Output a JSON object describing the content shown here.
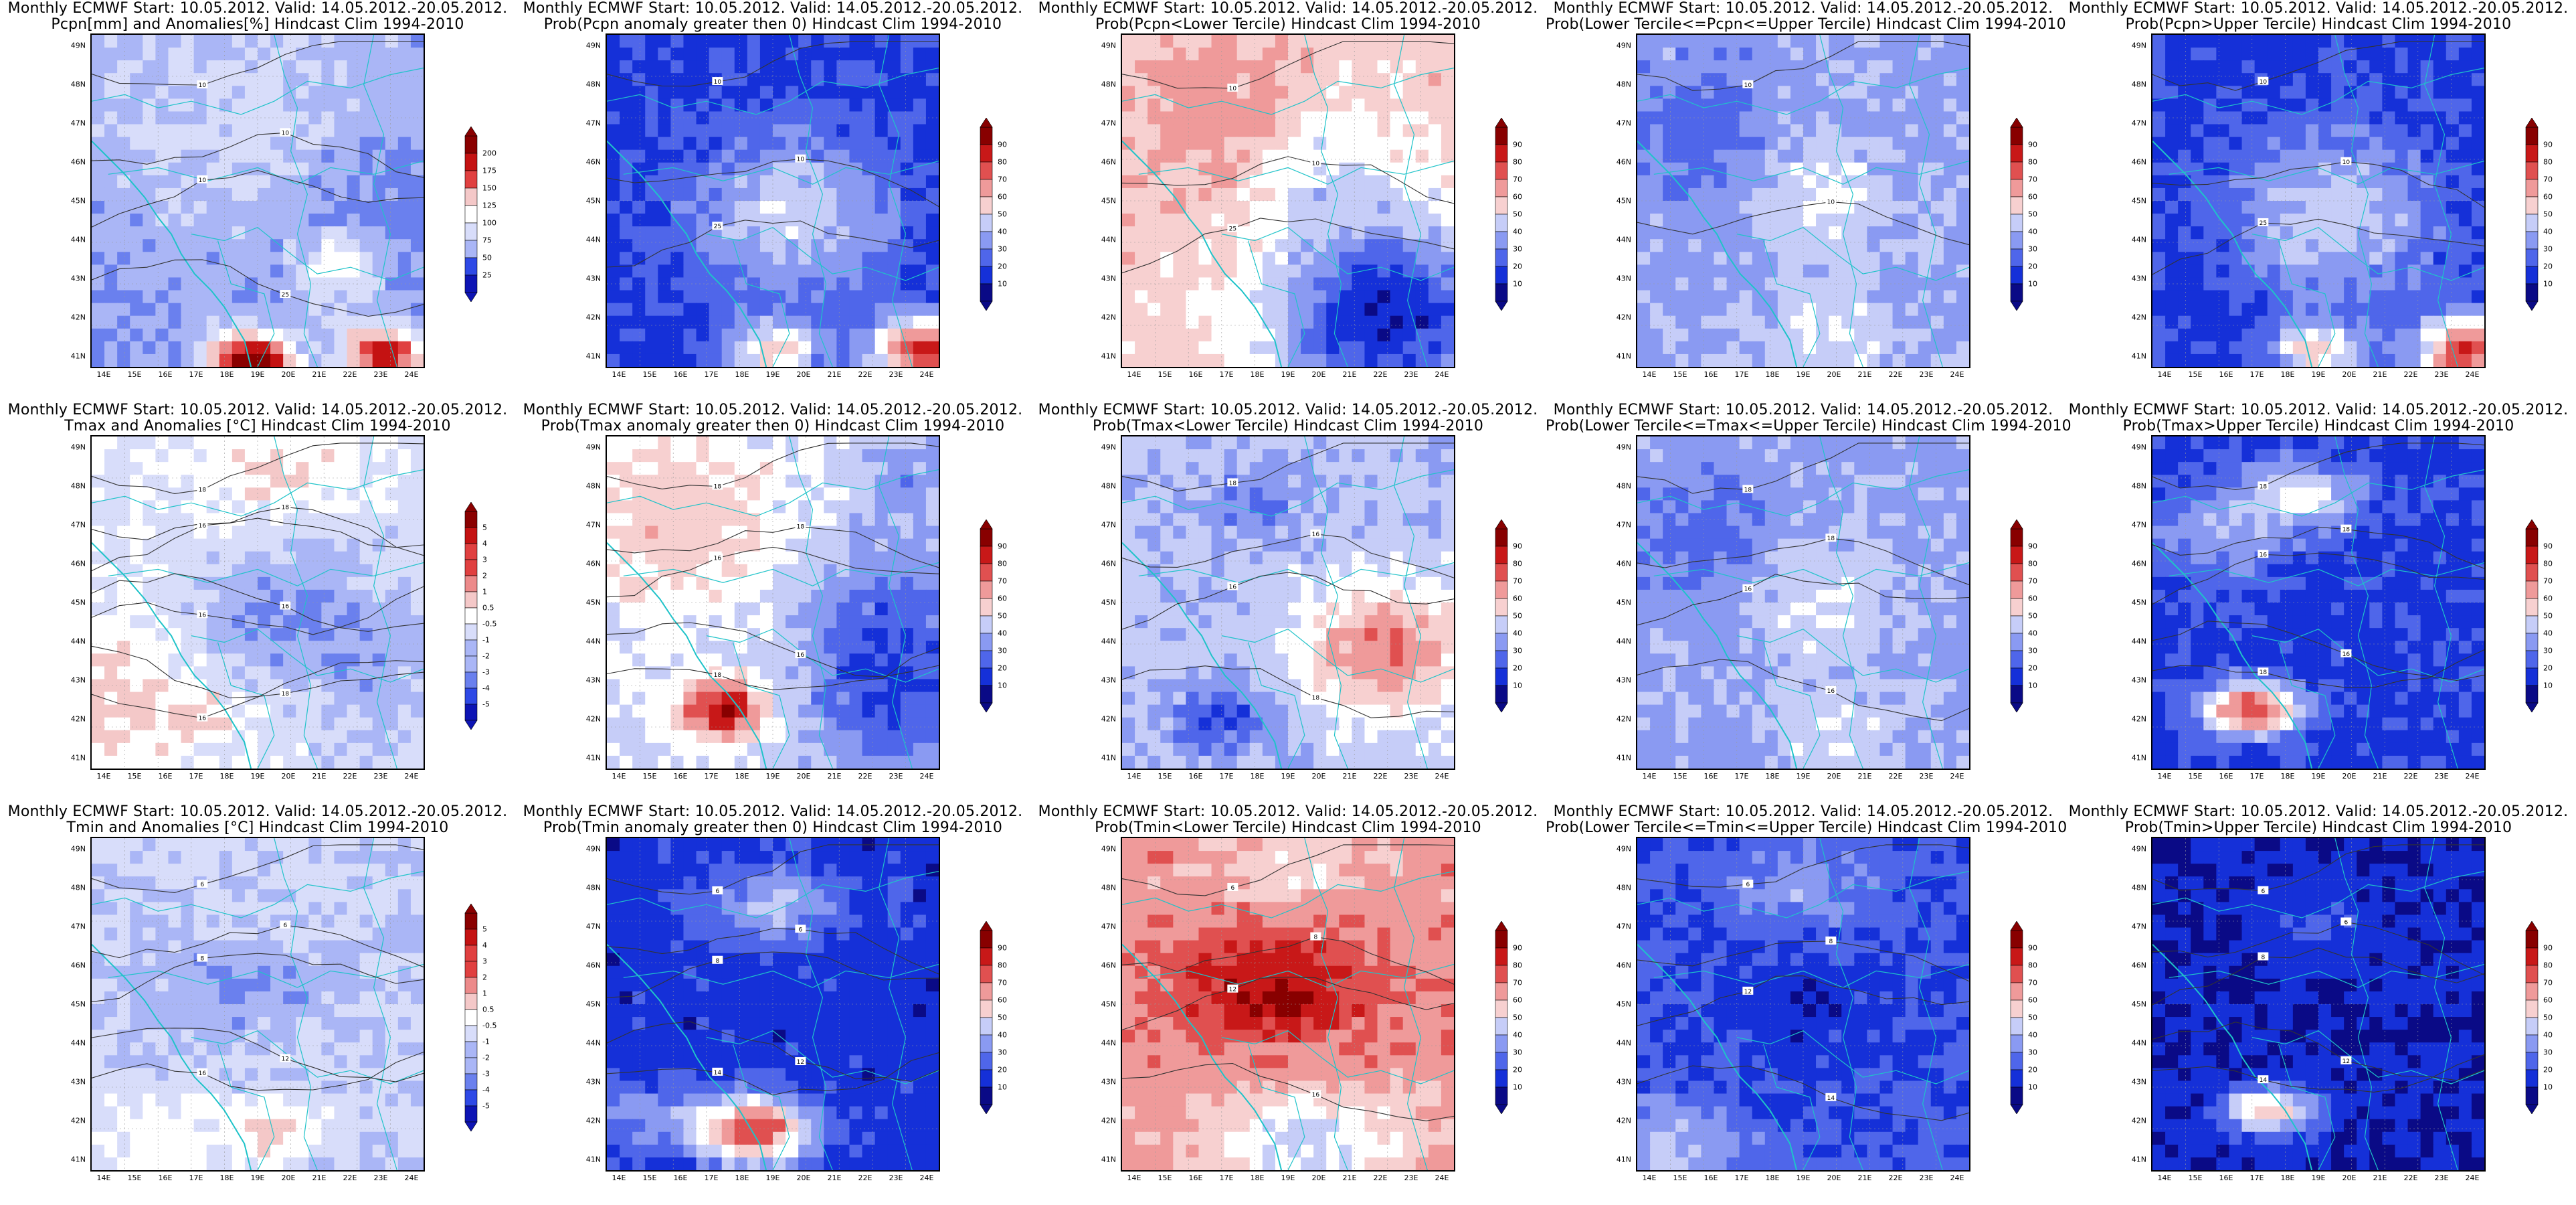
{
  "colors": {
    "precip_scale": [
      "#0d14b4",
      "#2e49e6",
      "#6a80ee",
      "#aab6f6",
      "#d8ddfa",
      "#ffffff",
      "#f4c8c8",
      "#ec8a8a",
      "#e04040",
      "#c41212",
      "#8a0000"
    ],
    "prob_scale": [
      "#0a0a86",
      "#1530d8",
      "#4f66ea",
      "#8a9af2",
      "#c6cdf8",
      "#ffffff",
      "#f7d0d0",
      "#ef9a9a",
      "#e05050",
      "#c81818",
      "#880000"
    ],
    "coast_line": "#1fc3c9",
    "contour_line": "#333333"
  },
  "x_ticks": [
    "14E",
    "15E",
    "16E",
    "17E",
    "18E",
    "19E",
    "20E",
    "21E",
    "22E",
    "23E",
    "24E"
  ],
  "y_ticks": [
    "41N",
    "42N",
    "43N",
    "44N",
    "45N",
    "46N",
    "47N",
    "48N",
    "49N"
  ],
  "panels": [
    {
      "id": "pcpn-anom",
      "line1": "Monthly ECMWF Start: 10.05.2012. Valid: 14.05.2012.-20.05.2012.",
      "line2": "Pcpn[mm] and Anomalies[%] Hindcast Clim 1994-2010",
      "cbar_labels": [
        "200",
        "175",
        "150",
        "125",
        "100",
        "75",
        "50",
        "25"
      ],
      "pattern": "pcpn",
      "contours": [
        "10",
        "10",
        "10",
        "25"
      ]
    },
    {
      "id": "pcpn-p0",
      "line1": "Monthly ECMWF Start: 10.05.2012. Valid: 14.05.2012.-20.05.2012.",
      "line2": "Prob(Pcpn anomaly greater then 0) Hindcast Clim 1994-2010",
      "cbar_labels": [
        "90",
        "80",
        "70",
        "60",
        "50",
        "40",
        "30",
        "20",
        "10"
      ],
      "pattern": "pcpn-p",
      "contours": [
        "10",
        "10",
        "25"
      ]
    },
    {
      "id": "pcpn-lower",
      "line1": "Monthly ECMWF Start: 10.05.2012. Valid: 14.05.2012.-20.05.2012.",
      "line2": "Prob(Pcpn<Lower Tercile) Hindcast Clim 1994-2010",
      "cbar_labels": [
        "90",
        "80",
        "70",
        "60",
        "50",
        "40",
        "30",
        "20",
        "10"
      ],
      "pattern": "pcpn-lower",
      "contours": [
        "10",
        "10",
        "25"
      ]
    },
    {
      "id": "pcpn-mid",
      "line1": "Monthly ECMWF Start: 10.05.2012. Valid: 14.05.2012.-20.05.2012.",
      "line2": "Prob(Lower Tercile<=Pcpn<=Upper Tercile) Hindcast Clim 1994-2010",
      "cbar_labels": [
        "90",
        "80",
        "70",
        "60",
        "50",
        "40",
        "30",
        "20",
        "10"
      ],
      "pattern": "mid",
      "contours": [
        "10",
        "10"
      ]
    },
    {
      "id": "pcpn-upper",
      "line1": "Monthly ECMWF Start: 10.05.2012. Valid: 14.05.2012.-20.05.2012.",
      "line2": "Prob(Pcpn>Upper Tercile) Hindcast Clim 1994-2010",
      "cbar_labels": [
        "90",
        "80",
        "70",
        "60",
        "50",
        "40",
        "30",
        "20",
        "10"
      ],
      "pattern": "pcpn-p",
      "contours": [
        "10",
        "10",
        "25"
      ]
    },
    {
      "id": "tmax-anom",
      "line1": "Monthly ECMWF Start: 10.05.2012. Valid: 14.05.2012.-20.05.2012.",
      "line2": "Tmax and Anomalies [°C] Hindcast Clim 1994-2010",
      "cbar_labels": [
        "5",
        "4",
        "3",
        "2",
        "1",
        "0.5",
        "-0.5",
        "-1",
        "-2",
        "-3",
        "-4",
        "-5"
      ],
      "pattern": "tmax",
      "contours": [
        "18",
        "18",
        "16",
        "16",
        "16",
        "18",
        "16"
      ]
    },
    {
      "id": "tmax-p0",
      "line1": "Monthly ECMWF Start: 10.05.2012. Valid: 14.05.2012.-20.05.2012.",
      "line2": "Prob(Tmax anomaly greater then 0) Hindcast Clim 1994-2010",
      "cbar_labels": [
        "90",
        "80",
        "70",
        "60",
        "50",
        "40",
        "30",
        "20",
        "10"
      ],
      "pattern": "t-p",
      "contours": [
        "18",
        "18",
        "16",
        "16",
        "18"
      ]
    },
    {
      "id": "tmax-lower",
      "line1": "Monthly ECMWF Start: 10.05.2012. Valid: 14.05.2012.-20.05.2012.",
      "line2": "Prob(Tmax<Lower Tercile) Hindcast Clim 1994-2010",
      "cbar_labels": [
        "90",
        "80",
        "70",
        "60",
        "50",
        "40",
        "30",
        "20",
        "10"
      ],
      "pattern": "t-lower",
      "contours": [
        "18",
        "16",
        "16",
        "18"
      ]
    },
    {
      "id": "tmax-mid",
      "line1": "Monthly ECMWF Start: 10.05.2012. Valid: 14.05.2012.-20.05.2012.",
      "line2": "Prob(Lower Tercile<=Tmax<=Upper Tercile) Hindcast Clim 1994-2010",
      "cbar_labels": [
        "90",
        "80",
        "70",
        "60",
        "50",
        "40",
        "30",
        "20",
        "10"
      ],
      "pattern": "mid",
      "contours": [
        "18",
        "18",
        "16",
        "16"
      ]
    },
    {
      "id": "tmax-upper",
      "line1": "Monthly ECMWF Start: 10.05.2012. Valid: 14.05.2012.-20.05.2012.",
      "line2": "Prob(Tmax>Upper Tercile) Hindcast Clim 1994-2010",
      "cbar_labels": [
        "90",
        "80",
        "70",
        "60",
        "50",
        "40",
        "30",
        "20",
        "10"
      ],
      "pattern": "t-upper",
      "contours": [
        "18",
        "18",
        "16",
        "16",
        "18"
      ]
    },
    {
      "id": "tmin-anom",
      "line1": "Monthly ECMWF Start: 10.05.2012. Valid: 14.05.2012.-20.05.2012.",
      "line2": "Tmin and Anomalies [°C] Hindcast Clim 1994-2010",
      "cbar_labels": [
        "5",
        "4",
        "3",
        "2",
        "1",
        "0.5",
        "-0.5",
        "-1",
        "-2",
        "-3",
        "-4",
        "-5"
      ],
      "pattern": "tmin",
      "contours": [
        "6",
        "6",
        "8",
        "12",
        "16"
      ]
    },
    {
      "id": "tmin-p0",
      "line1": "Monthly ECMWF Start: 10.05.2012. Valid: 14.05.2012.-20.05.2012.",
      "line2": "Prob(Tmin anomaly greater then 0) Hindcast Clim 1994-2010",
      "cbar_labels": [
        "90",
        "80",
        "70",
        "60",
        "50",
        "40",
        "30",
        "20",
        "10"
      ],
      "pattern": "tmin-p",
      "contours": [
        "6",
        "6",
        "8",
        "12",
        "14"
      ]
    },
    {
      "id": "tmin-lower",
      "line1": "Monthly ECMWF Start: 10.05.2012. Valid: 14.05.2012.-20.05.2012.",
      "line2": "Prob(Tmin<Lower Tercile) Hindcast Clim 1994-2010",
      "cbar_labels": [
        "90",
        "80",
        "70",
        "60",
        "50",
        "40",
        "30",
        "20",
        "10"
      ],
      "pattern": "tmin-lower",
      "contours": [
        "6",
        "8",
        "12",
        "16"
      ]
    },
    {
      "id": "tmin-mid",
      "line1": "Monthly ECMWF Start: 10.05.2012. Valid: 14.05.2012.-20.05.2012.",
      "line2": "Prob(Lower Tercile<=Tmin<=Upper Tercile) Hindcast Clim 1994-2010",
      "cbar_labels": [
        "90",
        "80",
        "70",
        "60",
        "50",
        "40",
        "30",
        "20",
        "10"
      ],
      "pattern": "mid-dark",
      "contours": [
        "6",
        "8",
        "12",
        "14"
      ]
    },
    {
      "id": "tmin-upper",
      "line1": "Monthly ECMWF Start: 10.05.2012. Valid: 14.05.2012.-20.05.2012.",
      "line2": "Prob(Tmin>Upper Tercile) Hindcast Clim 1994-2010",
      "cbar_labels": [
        "90",
        "80",
        "70",
        "60",
        "50",
        "40",
        "30",
        "20",
        "10"
      ],
      "pattern": "tmin-upper",
      "contours": [
        "6",
        "6",
        "8",
        "12",
        "14"
      ]
    }
  ]
}
